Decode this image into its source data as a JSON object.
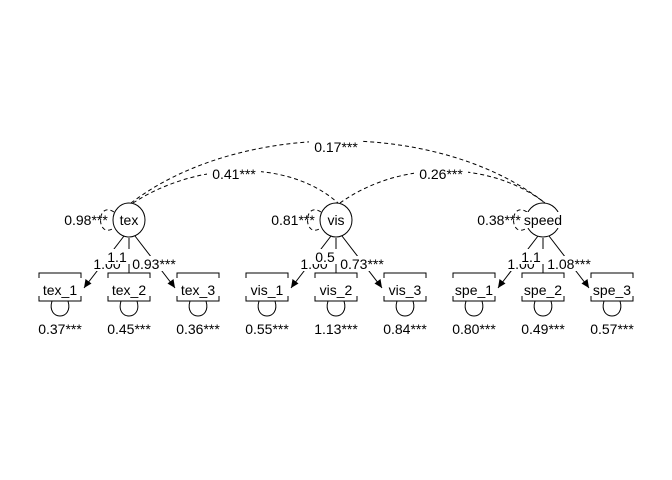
{
  "latent_nodes": [
    {
      "id": "tex",
      "label": "tex",
      "variance": "0.98***"
    },
    {
      "id": "vis",
      "label": "vis",
      "variance": "0.81***"
    },
    {
      "id": "speed",
      "label": "speed",
      "variance": "0.38***"
    }
  ],
  "indicator_nodes": [
    {
      "id": "tex_1",
      "label": "tex_1",
      "residual": "0.37***",
      "factor": "tex"
    },
    {
      "id": "tex_2",
      "label": "tex_2",
      "residual": "0.45***",
      "factor": "tex"
    },
    {
      "id": "tex_3",
      "label": "tex_3",
      "residual": "0.36***",
      "factor": "tex"
    },
    {
      "id": "vis_1",
      "label": "vis_1",
      "residual": "0.55***",
      "factor": "vis"
    },
    {
      "id": "vis_2",
      "label": "vis_2",
      "residual": "1.13***",
      "factor": "vis"
    },
    {
      "id": "vis_3",
      "label": "vis_3",
      "residual": "0.84***",
      "factor": "vis"
    },
    {
      "id": "spe_1",
      "label": "spe_1",
      "residual": "0.80***",
      "factor": "speed"
    },
    {
      "id": "spe_2",
      "label": "spe_2",
      "residual": "0.49***",
      "factor": "speed"
    },
    {
      "id": "spe_3",
      "label": "spe_3",
      "residual": "0.57***",
      "factor": "speed"
    }
  ],
  "loadings": [
    {
      "from": "tex",
      "to": "tex_1",
      "label": "1.00"
    },
    {
      "from": "tex",
      "to": "tex_2",
      "label": "1.1"
    },
    {
      "from": "tex",
      "to": "tex_3",
      "label": "0.93***"
    },
    {
      "from": "vis",
      "to": "vis_1",
      "label": "1.00"
    },
    {
      "from": "vis",
      "to": "vis_2",
      "label": "0.5"
    },
    {
      "from": "vis",
      "to": "vis_3",
      "label": "0.73***"
    },
    {
      "from": "speed",
      "to": "spe_1",
      "label": "1.00"
    },
    {
      "from": "speed",
      "to": "spe_2",
      "label": "1.1"
    },
    {
      "from": "speed",
      "to": "spe_3",
      "label": "1.08***"
    }
  ],
  "covariances": [
    {
      "between": [
        "tex",
        "speed"
      ],
      "label": "0.17***"
    },
    {
      "between": [
        "tex",
        "vis"
      ],
      "label": "0.41***"
    },
    {
      "between": [
        "vis",
        "speed"
      ],
      "label": "0.26***"
    }
  ]
}
